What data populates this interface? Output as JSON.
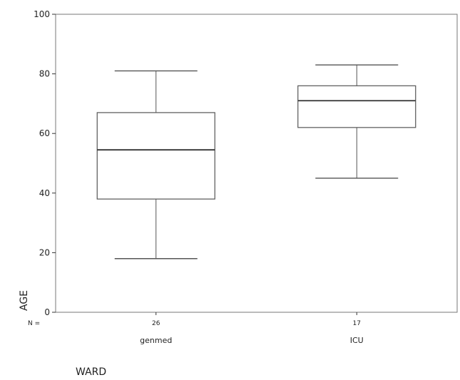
{
  "chart_data": {
    "type": "boxplot",
    "title": "",
    "xlabel": "WARD",
    "ylabel": "AGE",
    "ylim": [
      0,
      100
    ],
    "yticks": [
      "0",
      "20",
      "40",
      "60",
      "80",
      "100"
    ],
    "n_prefix": "N =",
    "grid": false,
    "categories": [
      "genmed",
      "ICU"
    ],
    "n": [
      "26",
      "17"
    ],
    "series": [
      {
        "category": "genmed",
        "min": 18,
        "q1": 38,
        "median": 54.5,
        "q3": 67,
        "max": 81
      },
      {
        "category": "ICU",
        "min": 45,
        "q1": 62,
        "median": 71,
        "q3": 76,
        "max": 83
      }
    ],
    "colors": {
      "line": "#555555",
      "frame": "#777777",
      "text": "#222222"
    }
  }
}
